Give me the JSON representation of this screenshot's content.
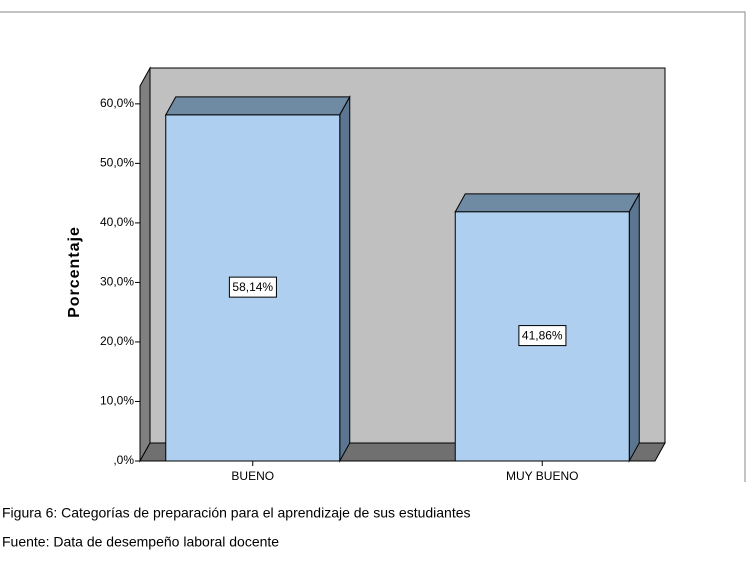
{
  "chart_data": {
    "type": "bar3d",
    "y_label": "Porcentaje",
    "categories": [
      "BUENO",
      "MUY BUENO"
    ],
    "values": [
      58.14,
      41.86
    ],
    "value_labels": [
      "58,14%",
      "41,86%"
    ],
    "color": "#aecff0",
    "ylim": [
      0,
      63
    ],
    "yticks": [
      {
        "value": 0,
        "label": ",0%"
      },
      {
        "value": 10,
        "label": "10,0%"
      },
      {
        "value": 20,
        "label": "20,0%"
      },
      {
        "value": 30,
        "label": "30,0%"
      },
      {
        "value": 40,
        "label": "40,0%"
      },
      {
        "value": 50,
        "label": "50,0%"
      },
      {
        "value": 60,
        "label": "60,0%"
      }
    ],
    "caption": "Figura 6: Categorías de preparación para el aprendizaje de sus estudiantes",
    "source": "Fuente: Data de desempeño laboral docente"
  }
}
